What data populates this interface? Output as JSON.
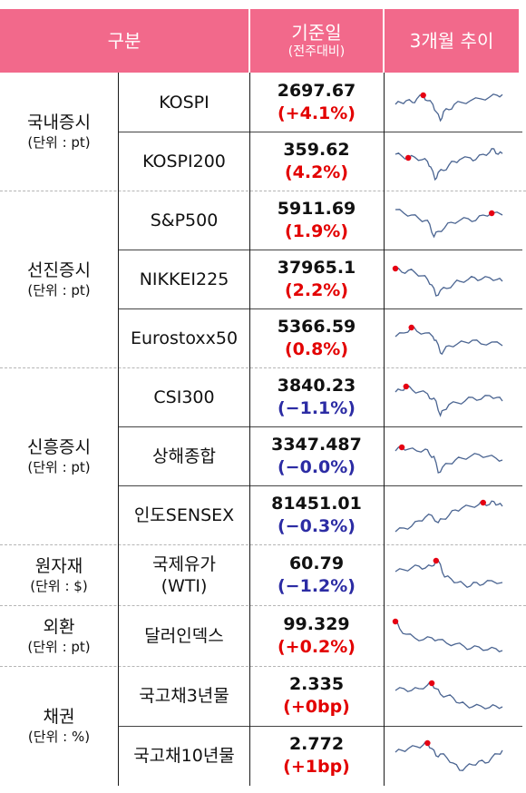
{
  "header": {
    "col1": "구분",
    "col2_title": "기준일",
    "col2_sub": "(전주대비)",
    "col3": "3개월 추이"
  },
  "groups": [
    {
      "name": "국내증시",
      "unit": "(단위 : pt)"
    },
    {
      "name": "선진증시",
      "unit": "(단위 : pt)"
    },
    {
      "name": "신흥증시",
      "unit": "(단위 : pt)"
    },
    {
      "name": "원자재",
      "unit": "(단위 : $)"
    },
    {
      "name": "외환",
      "unit": "(단위 : pt)"
    },
    {
      "name": "채권",
      "unit": "(단위 : %)"
    }
  ],
  "rows": [
    {
      "item": "KOSPI",
      "value": "2697.67",
      "change": "(+4.1%)",
      "dir": "pos"
    },
    {
      "item": "KOSPI200",
      "value": "359.62",
      "change": "(4.2%)",
      "dir": "pos"
    },
    {
      "item": "S&P500",
      "value": "5911.69",
      "change": "(1.9%)",
      "dir": "pos"
    },
    {
      "item": "NIKKEI225",
      "value": "37965.1",
      "change": "(2.2%)",
      "dir": "pos"
    },
    {
      "item": "Eurostoxx50",
      "value": "5366.59",
      "change": "(0.8%)",
      "dir": "pos"
    },
    {
      "item": "CSI300",
      "value": "3840.23",
      "change": "(−1.1%)",
      "dir": "neg"
    },
    {
      "item": "상해종합",
      "value": "3347.487",
      "change": "(−0.0%)",
      "dir": "neg"
    },
    {
      "item": "인도SENSEX",
      "value": "81451.01",
      "change": "(−0.3%)",
      "dir": "neg"
    },
    {
      "item": "국제유가\n(WTI)",
      "value": "60.79",
      "change": "(−1.2%)",
      "dir": "neg"
    },
    {
      "item": "달러인덱스",
      "value": "99.329",
      "change": "(+0.2%)",
      "dir": "pos"
    },
    {
      "item": "국고채3년물",
      "value": "2.335",
      "change": "(+0bp)",
      "dir": "pos"
    },
    {
      "item": "국고채10년물",
      "value": "2.772",
      "change": "(+1bp)",
      "dir": "pos"
    }
  ],
  "colors": {
    "header_bg": "#f2698b",
    "positive": "#e30000",
    "negative": "#2c2ca4",
    "spark_line": "#4a6491",
    "spark_marker": "#e60012"
  }
}
